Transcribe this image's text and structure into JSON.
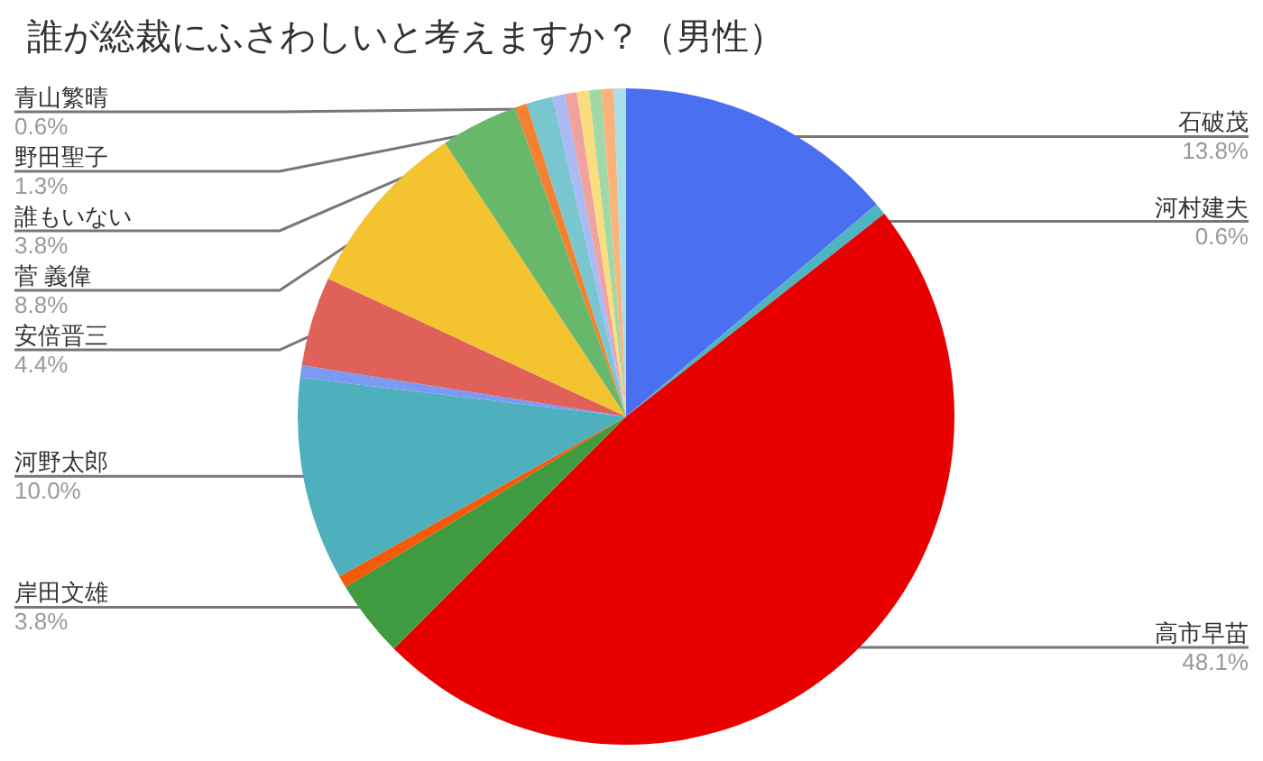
{
  "chart_data": {
    "type": "pie",
    "title": "誰が総裁にふさわしいと考えますか？（男性）",
    "categories": [
      "石破茂",
      "河村建夫",
      "高市早苗",
      "岸田文雄",
      null,
      "河野太郎",
      null,
      "安倍晋三",
      "菅 義偉",
      "誰もいない",
      null,
      "野田聖子",
      null,
      null,
      null,
      null,
      null,
      "青山繁晴"
    ],
    "values": [
      13.8,
      0.6,
      48.1,
      3.8,
      0.6,
      10.0,
      0.6,
      4.4,
      8.8,
      3.8,
      0.6,
      1.3,
      0.6,
      0.6,
      0.6,
      0.6,
      0.6,
      0.6
    ],
    "colors": [
      "#4a6ff0",
      "#4db6c0",
      "#e80000",
      "#3e9b40",
      "#f55a0a",
      "#4eb0bc",
      "#7a9af5",
      "#e0605a",
      "#f4c430",
      "#68b86c",
      "#f48130",
      "#7ac6d0",
      "#aabaf5",
      "#eea39e",
      "#fbdd80",
      "#a0d8a8",
      "#fbb37a",
      "#a6dfe6"
    ],
    "value_labels": [
      "13.8%",
      "0.6%",
      "48.1%",
      "3.8%",
      null,
      "10.0%",
      null,
      "4.4%",
      "8.8%",
      "3.8%",
      null,
      "1.3%",
      null,
      null,
      null,
      null,
      null,
      "0.6%"
    ]
  }
}
